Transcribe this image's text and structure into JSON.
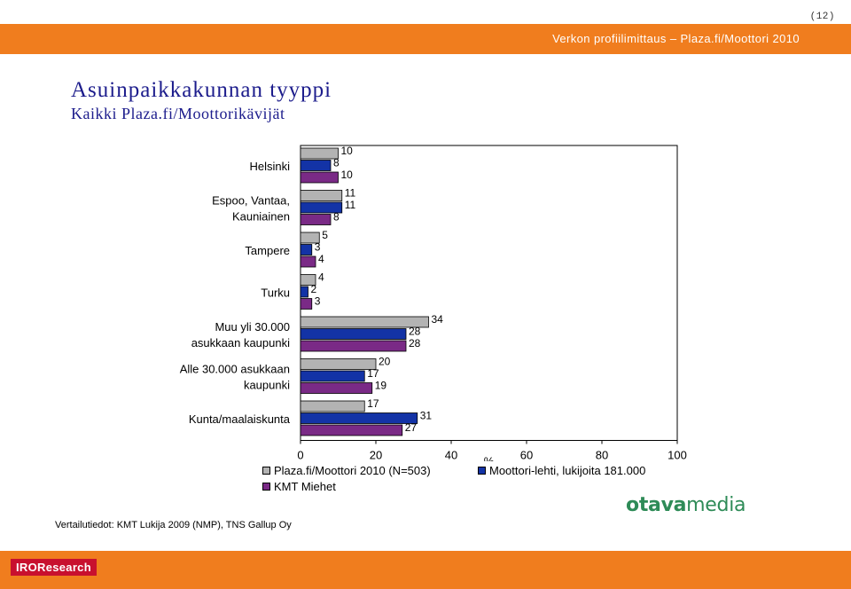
{
  "page_number": "12",
  "header": {
    "text": "Verkon profiilimittaus – Plaza.fi/Moottori 2010"
  },
  "title": "Asuinpaikkakunnan tyyppi",
  "subtitle": "Kaikki Plaza.fi/Moottorikävijät",
  "source": "Vertailutiedot: KMT Lukija 2009 (NMP), TNS Gallup Oy",
  "logos": {
    "otava_bold": "otava",
    "otava_light": "media",
    "iro": "IROResearch"
  },
  "colors": {
    "accent": "#f07d1e",
    "title": "#1c1c8c"
  },
  "chart_data": {
    "type": "bar",
    "orientation": "horizontal",
    "categories": [
      [
        "Helsinki"
      ],
      [
        "Espoo, Vantaa,",
        "Kauniainen"
      ],
      [
        "Tampere"
      ],
      [
        "Turku"
      ],
      [
        "Muu yli 30.000",
        "asukkaan kaupunki"
      ],
      [
        "Alle 30.000 asukkaan",
        "kaupunki"
      ],
      [
        "Kunta/maalaiskunta"
      ]
    ],
    "series": [
      {
        "name": "Plaza.fi/Moottori 2010 (N=503)",
        "color": "#b3b3b3",
        "values": [
          10,
          11,
          5,
          4,
          34,
          20,
          17
        ]
      },
      {
        "name": "Moottori-lehti, lukijoita 181.000",
        "color": "#1333a6",
        "values": [
          8,
          11,
          3,
          2,
          28,
          17,
          31
        ]
      },
      {
        "name": "KMT Miehet",
        "color": "#7a2a86",
        "values": [
          10,
          8,
          4,
          3,
          28,
          19,
          27
        ]
      }
    ],
    "xlim": [
      0,
      100
    ],
    "xticks": [
      0,
      20,
      40,
      60,
      80,
      100
    ],
    "xlabel": "%",
    "grid": false,
    "legend_position": "bottom"
  }
}
